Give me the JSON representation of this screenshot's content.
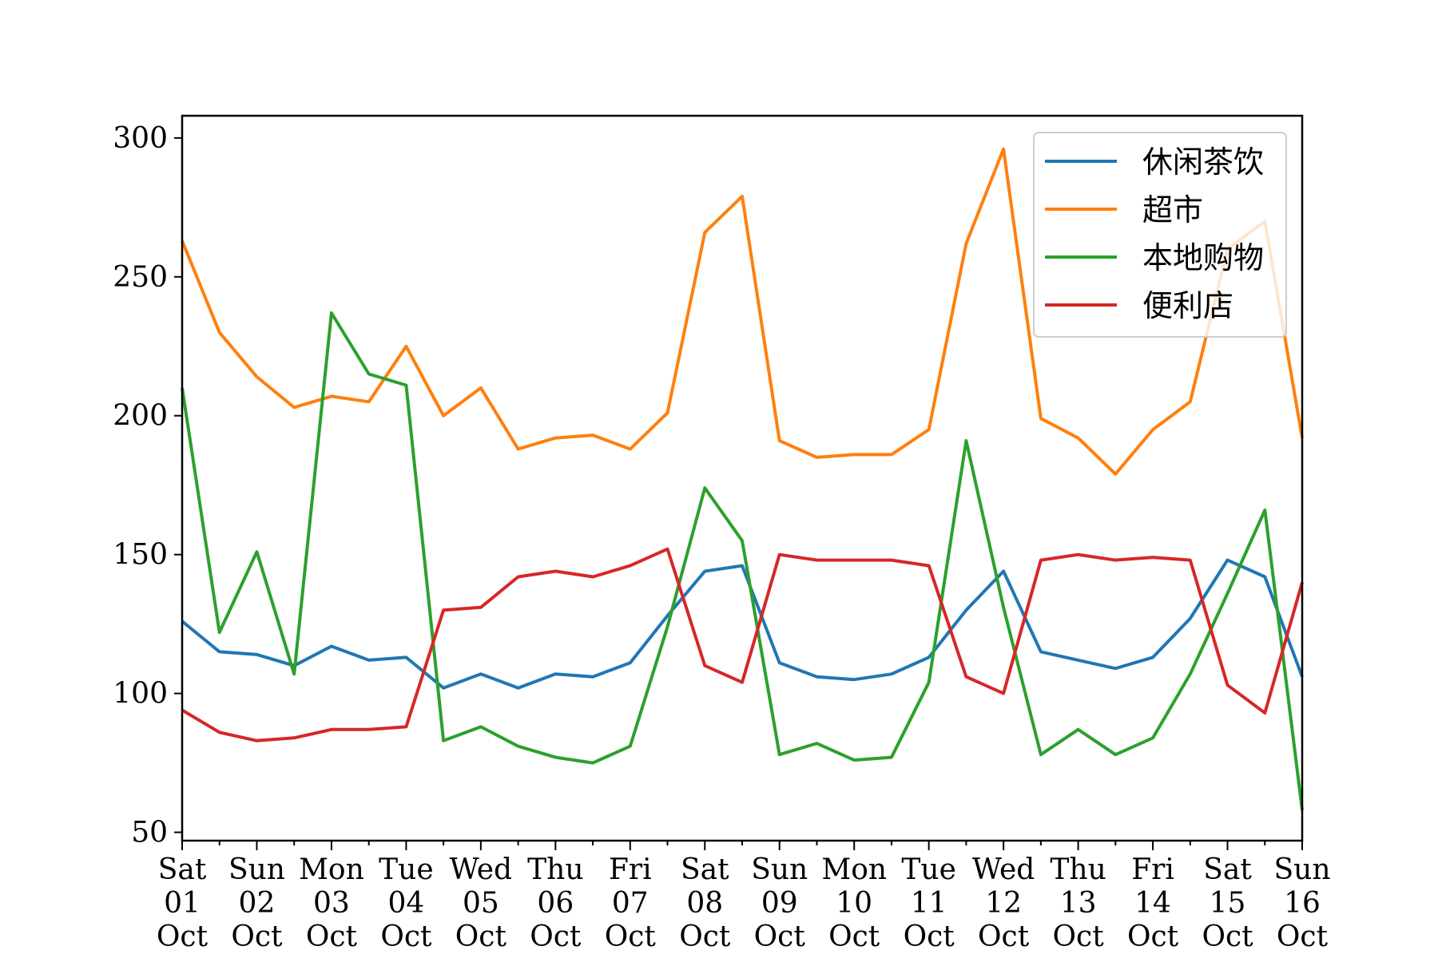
{
  "chart_data": {
    "type": "line",
    "title": "",
    "xlabel": "",
    "ylabel": "",
    "ylim": [
      47,
      308
    ],
    "yticks": [
      50,
      100,
      150,
      200,
      250,
      300
    ],
    "grid": false,
    "legend_position": "upper-right",
    "x_tick_labels": [
      {
        "line1": "Sat",
        "line2": "01",
        "line3": "Oct"
      },
      {
        "line1": "Sun",
        "line2": "02",
        "line3": "Oct"
      },
      {
        "line1": "Mon",
        "line2": "03",
        "line3": "Oct"
      },
      {
        "line1": "Tue",
        "line2": "04",
        "line3": "Oct"
      },
      {
        "line1": "Wed",
        "line2": "05",
        "line3": "Oct"
      },
      {
        "line1": "Thu",
        "line2": "06",
        "line3": "Oct"
      },
      {
        "line1": "Fri",
        "line2": "07",
        "line3": "Oct"
      },
      {
        "line1": "Sat",
        "line2": "08",
        "line3": "Oct"
      },
      {
        "line1": "Sun",
        "line2": "09",
        "line3": "Oct"
      },
      {
        "line1": "Mon",
        "line2": "10",
        "line3": "Oct"
      },
      {
        "line1": "Tue",
        "line2": "11",
        "line3": "Oct"
      },
      {
        "line1": "Wed",
        "line2": "12",
        "line3": "Oct"
      },
      {
        "line1": "Thu",
        "line2": "13",
        "line3": "Oct"
      },
      {
        "line1": "Fri",
        "line2": "14",
        "line3": "Oct"
      },
      {
        "line1": "Sat",
        "line2": "15",
        "line3": "Oct"
      },
      {
        "line1": "Sun",
        "line2": "16",
        "line3": "Oct"
      }
    ],
    "x": [
      "10-01 00:00",
      "10-01 12:00",
      "10-02 00:00",
      "10-02 12:00",
      "10-03 00:00",
      "10-03 12:00",
      "10-04 00:00",
      "10-04 12:00",
      "10-05 00:00",
      "10-05 12:00",
      "10-06 00:00",
      "10-06 12:00",
      "10-07 00:00",
      "10-07 12:00",
      "10-08 00:00",
      "10-08 12:00",
      "10-09 00:00",
      "10-09 12:00",
      "10-10 00:00",
      "10-10 12:00",
      "10-11 00:00",
      "10-11 12:00",
      "10-12 00:00",
      "10-12 12:00",
      "10-13 00:00",
      "10-13 12:00",
      "10-14 00:00",
      "10-14 12:00",
      "10-15 00:00",
      "10-15 12:00",
      "10-16 00:00"
    ],
    "series": [
      {
        "name": "休闲茶饮",
        "color": "#1f77b4",
        "values": [
          126,
          115,
          114,
          110,
          117,
          112,
          113,
          102,
          107,
          102,
          107,
          106,
          111,
          128,
          144,
          146,
          111,
          106,
          105,
          107,
          113,
          130,
          144,
          115,
          112,
          109,
          113,
          127,
          148,
          142,
          106
        ]
      },
      {
        "name": "超市",
        "color": "#ff7f0e",
        "values": [
          263,
          230,
          214,
          203,
          207,
          205,
          225,
          200,
          210,
          188,
          192,
          193,
          188,
          201,
          266,
          279,
          191,
          185,
          186,
          186,
          195,
          262,
          296,
          199,
          192,
          179,
          195,
          205,
          260,
          270,
          192
        ]
      },
      {
        "name": "本地购物",
        "color": "#2ca02c",
        "values": [
          210,
          122,
          151,
          107,
          237,
          215,
          211,
          83,
          88,
          81,
          77,
          75,
          81,
          124,
          174,
          155,
          78,
          82,
          76,
          77,
          104,
          191,
          131,
          78,
          87,
          78,
          84,
          107,
          136,
          166,
          58
        ]
      },
      {
        "name": "便利店",
        "color": "#d62728",
        "values": [
          94,
          86,
          83,
          84,
          87,
          87,
          88,
          130,
          131,
          142,
          144,
          142,
          146,
          152,
          110,
          104,
          150,
          148,
          148,
          148,
          146,
          106,
          100,
          148,
          150,
          148,
          149,
          148,
          103,
          93,
          140
        ]
      }
    ]
  }
}
